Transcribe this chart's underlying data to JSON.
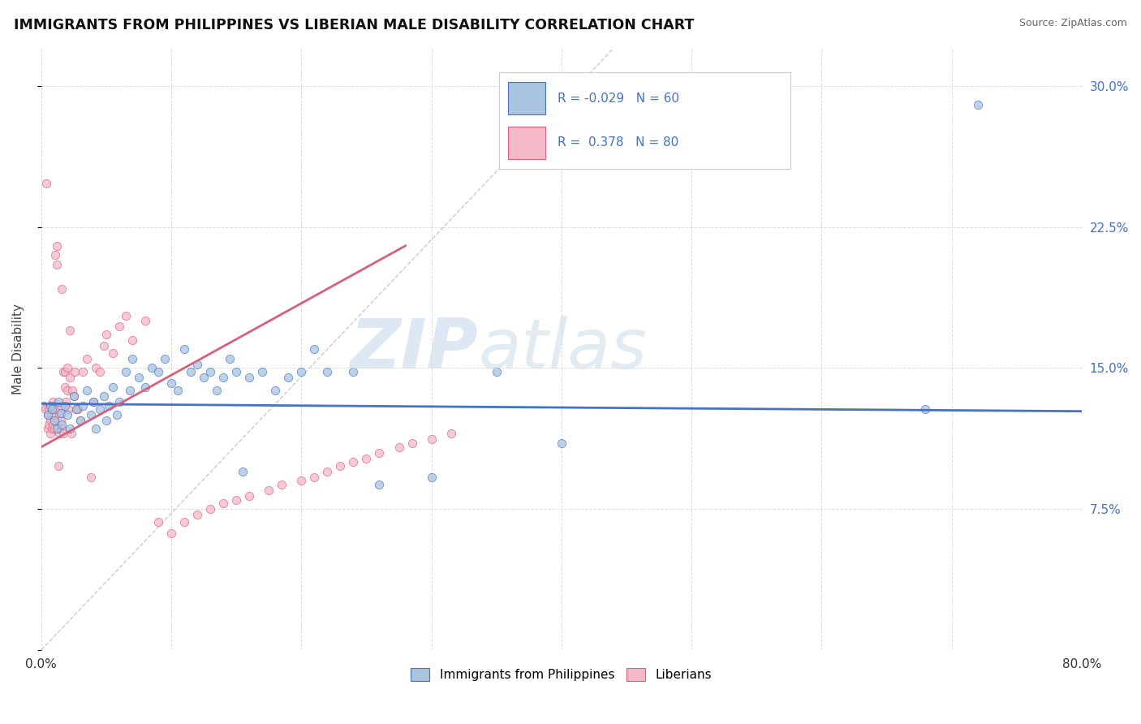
{
  "title": "IMMIGRANTS FROM PHILIPPINES VS LIBERIAN MALE DISABILITY CORRELATION CHART",
  "source": "Source: ZipAtlas.com",
  "ylabel": "Male Disability",
  "xlim": [
    0.0,
    0.8
  ],
  "ylim": [
    0.0,
    0.32
  ],
  "ytick_vals_right": [
    0.3,
    0.225,
    0.15,
    0.075
  ],
  "color_philippines": "#a8c4e0",
  "color_liberian": "#f4b8c8",
  "color_philippines_line": "#4472c4",
  "color_liberian_line": "#d9607a",
  "background_color": "#ffffff",
  "grid_color": "#c8c8c8",
  "philippines_x": [
    0.005,
    0.007,
    0.008,
    0.01,
    0.012,
    0.013,
    0.015,
    0.016,
    0.018,
    0.02,
    0.022,
    0.025,
    0.027,
    0.03,
    0.032,
    0.035,
    0.038,
    0.04,
    0.042,
    0.045,
    0.048,
    0.05,
    0.052,
    0.055,
    0.058,
    0.06,
    0.065,
    0.068,
    0.07,
    0.075,
    0.08,
    0.085,
    0.09,
    0.095,
    0.1,
    0.105,
    0.11,
    0.115,
    0.12,
    0.125,
    0.13,
    0.135,
    0.14,
    0.145,
    0.15,
    0.155,
    0.16,
    0.17,
    0.18,
    0.19,
    0.2,
    0.21,
    0.22,
    0.24,
    0.26,
    0.3,
    0.35,
    0.4,
    0.68,
    0.72
  ],
  "philippines_y": [
    0.125,
    0.13,
    0.128,
    0.122,
    0.118,
    0.132,
    0.126,
    0.12,
    0.13,
    0.125,
    0.118,
    0.135,
    0.128,
    0.122,
    0.13,
    0.138,
    0.125,
    0.132,
    0.118,
    0.128,
    0.135,
    0.122,
    0.13,
    0.14,
    0.125,
    0.132,
    0.148,
    0.138,
    0.155,
    0.145,
    0.14,
    0.15,
    0.148,
    0.155,
    0.142,
    0.138,
    0.16,
    0.148,
    0.152,
    0.145,
    0.148,
    0.138,
    0.145,
    0.155,
    0.148,
    0.095,
    0.145,
    0.148,
    0.138,
    0.145,
    0.148,
    0.16,
    0.148,
    0.148,
    0.088,
    0.092,
    0.148,
    0.11,
    0.128,
    0.29
  ],
  "liberian_x": [
    0.002,
    0.003,
    0.004,
    0.005,
    0.005,
    0.006,
    0.006,
    0.007,
    0.007,
    0.008,
    0.008,
    0.008,
    0.009,
    0.009,
    0.01,
    0.01,
    0.01,
    0.011,
    0.011,
    0.012,
    0.012,
    0.013,
    0.013,
    0.014,
    0.014,
    0.015,
    0.015,
    0.016,
    0.016,
    0.017,
    0.017,
    0.018,
    0.018,
    0.019,
    0.02,
    0.02,
    0.021,
    0.022,
    0.022,
    0.023,
    0.024,
    0.025,
    0.026,
    0.027,
    0.028,
    0.03,
    0.032,
    0.035,
    0.038,
    0.04,
    0.042,
    0.045,
    0.048,
    0.05,
    0.055,
    0.06,
    0.065,
    0.07,
    0.08,
    0.09,
    0.1,
    0.11,
    0.12,
    0.13,
    0.14,
    0.15,
    0.16,
    0.175,
    0.185,
    0.2,
    0.21,
    0.22,
    0.23,
    0.24,
    0.25,
    0.26,
    0.275,
    0.285,
    0.3,
    0.315
  ],
  "liberian_y": [
    0.13,
    0.128,
    0.248,
    0.118,
    0.125,
    0.12,
    0.128,
    0.115,
    0.122,
    0.118,
    0.128,
    0.125,
    0.132,
    0.12,
    0.125,
    0.13,
    0.118,
    0.128,
    0.21,
    0.215,
    0.205,
    0.098,
    0.118,
    0.115,
    0.125,
    0.122,
    0.13,
    0.192,
    0.118,
    0.115,
    0.148,
    0.14,
    0.148,
    0.132,
    0.15,
    0.138,
    0.128,
    0.17,
    0.145,
    0.115,
    0.138,
    0.135,
    0.148,
    0.128,
    0.128,
    0.122,
    0.148,
    0.155,
    0.092,
    0.132,
    0.15,
    0.148,
    0.162,
    0.168,
    0.158,
    0.172,
    0.178,
    0.165,
    0.175,
    0.068,
    0.062,
    0.068,
    0.072,
    0.075,
    0.078,
    0.08,
    0.082,
    0.085,
    0.088,
    0.09,
    0.092,
    0.095,
    0.098,
    0.1,
    0.102,
    0.105,
    0.108,
    0.11,
    0.112,
    0.115
  ]
}
